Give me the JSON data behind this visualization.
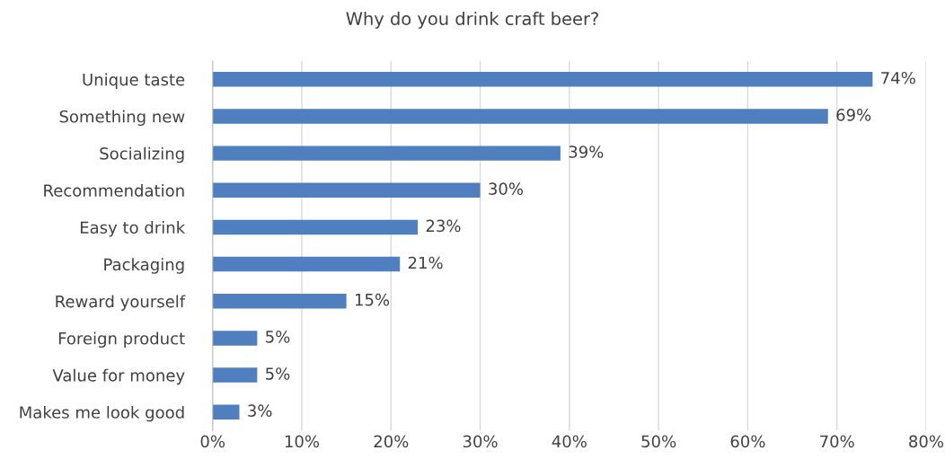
{
  "chart_data": {
    "type": "bar",
    "orientation": "horizontal",
    "title": "Why do you drink craft beer?",
    "categories": [
      "Unique taste",
      "Something new",
      "Socializing",
      "Recommendation",
      "Easy to drink",
      "Packaging",
      "Reward yourself",
      "Foreign product",
      "Value for money",
      "Makes me look good"
    ],
    "values": [
      74,
      69,
      39,
      30,
      23,
      21,
      15,
      5,
      5,
      3
    ],
    "value_labels": [
      "74%",
      "69%",
      "39%",
      "30%",
      "23%",
      "21%",
      "15%",
      "5%",
      "5%",
      "3%"
    ],
    "color": "#4f7fbf",
    "xlim": [
      0,
      80
    ],
    "xticks": [
      {
        "value": 0,
        "label": "0%"
      },
      {
        "value": 10,
        "label": "10%"
      },
      {
        "value": 20,
        "label": "20%"
      },
      {
        "value": 30,
        "label": "30%"
      },
      {
        "value": 40,
        "label": "40%"
      },
      {
        "value": 50,
        "label": "50%"
      },
      {
        "value": 60,
        "label": "60%"
      },
      {
        "value": 70,
        "label": "70%"
      },
      {
        "value": 80,
        "label": "80%"
      }
    ],
    "grid": "x"
  }
}
